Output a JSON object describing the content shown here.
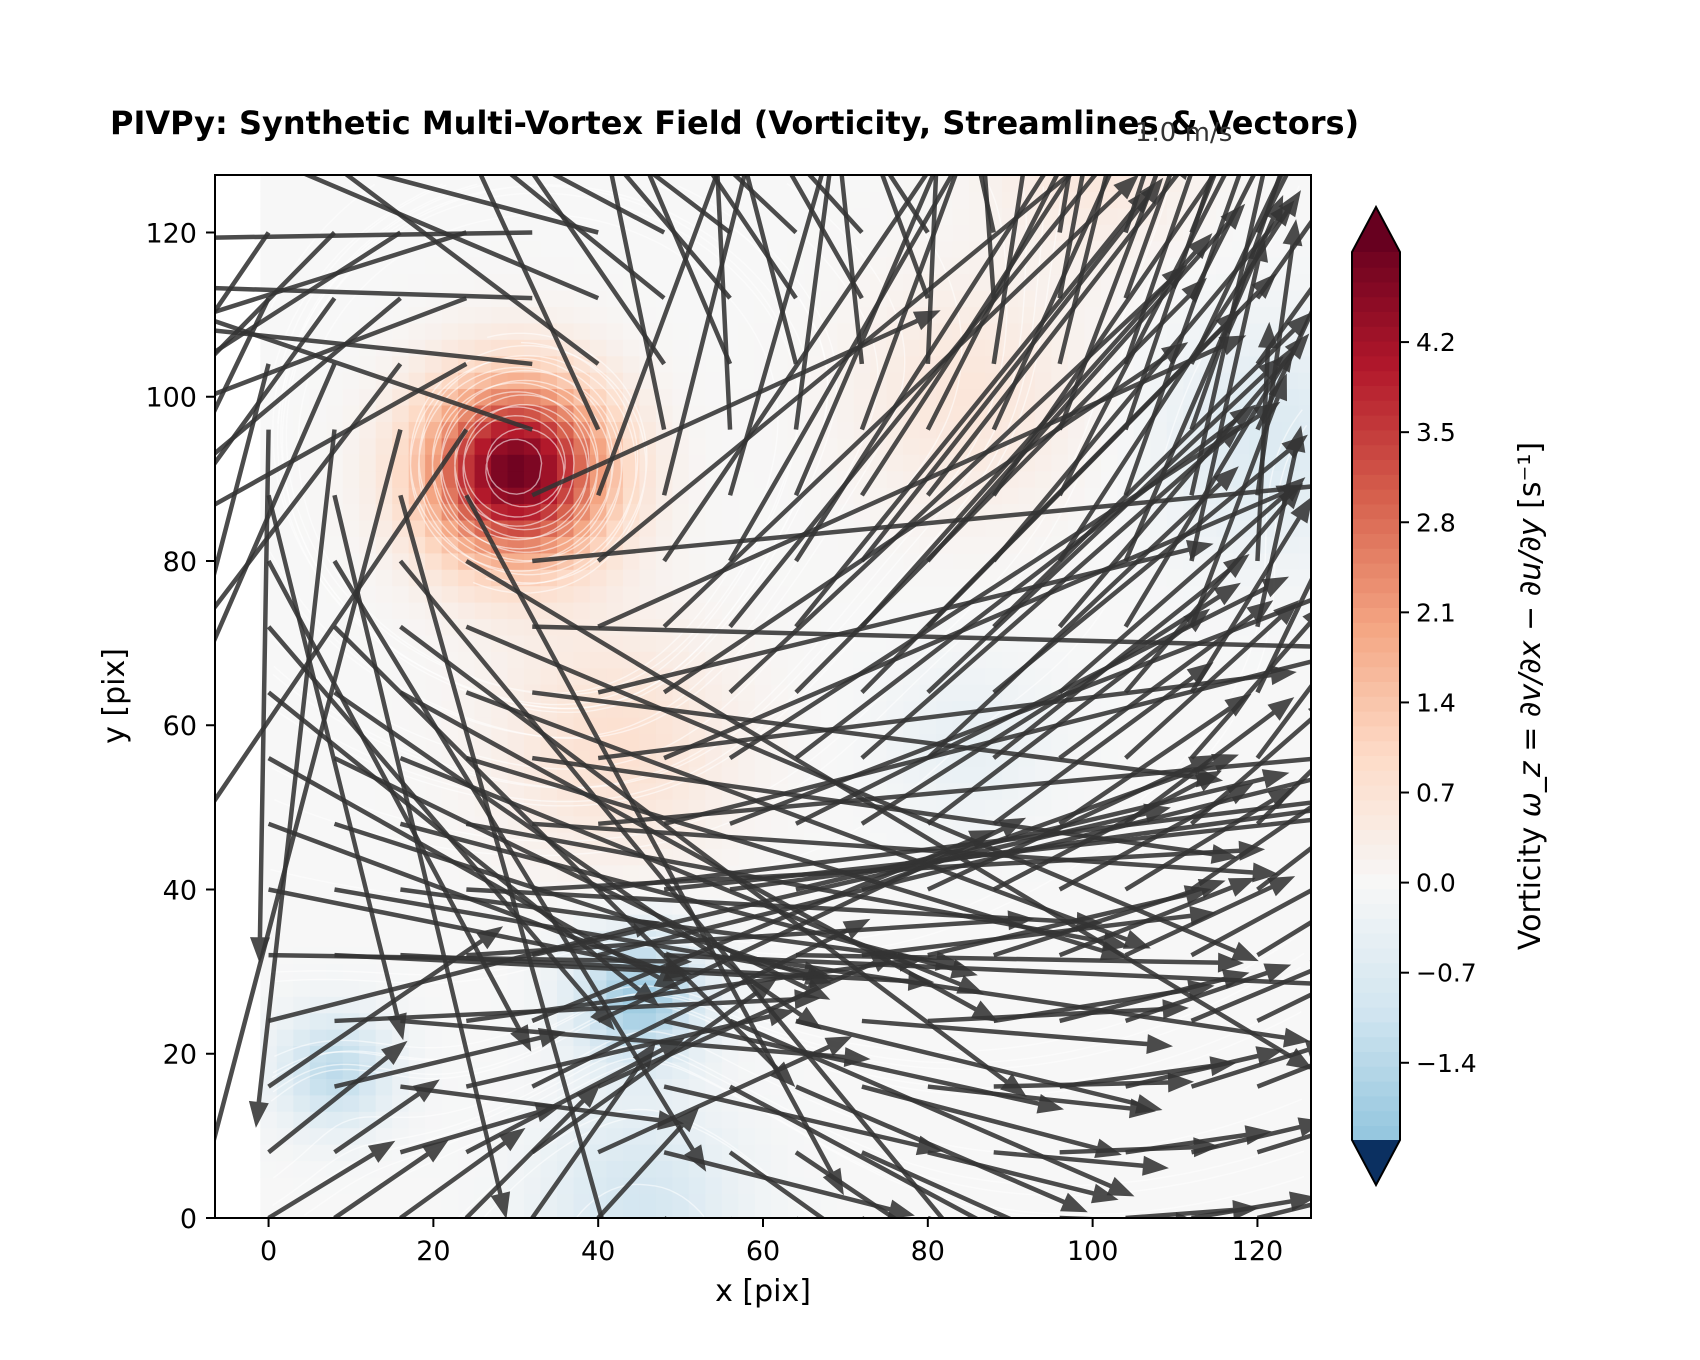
{
  "chart_data": {
    "type": "heatmap",
    "title": "PIVPy: Synthetic Multi-Vortex Field (Vorticity, Streamlines & Vectors)",
    "quiver_key_label": "1.0 m/s",
    "xlabel": "x [pix]",
    "ylabel": "y [pix]",
    "xlim": [
      -6.5,
      126.5
    ],
    "ylim": [
      0,
      127
    ],
    "x_ticks": [
      0,
      20,
      40,
      60,
      80,
      100,
      120
    ],
    "y_ticks": [
      0,
      20,
      40,
      60,
      80,
      100,
      120
    ],
    "grid": false,
    "colormap": "RdBu_r",
    "colorbar": {
      "label_prefix": "Vorticity",
      "label_math": "ω_z = ∂v/∂x − ∂u/∂y",
      "label_unit": "[s⁻¹]",
      "ticks": [
        -1.4,
        -0.7,
        0.0,
        0.7,
        1.4,
        2.1,
        2.8,
        3.5,
        4.2
      ],
      "tick_labels": [
        "−1.4",
        "−0.7",
        "0.0",
        "0.7",
        "1.4",
        "2.1",
        "2.8",
        "3.5",
        "4.2"
      ],
      "range": [
        -2.0,
        4.9
      ],
      "extend": "both",
      "under_color": "#0b3061",
      "over_color": "#67001f"
    },
    "vortices": [
      {
        "x": 30,
        "y": 91,
        "strength": 4.9,
        "core_radius": 11
      },
      {
        "x": 122,
        "y": 95,
        "strength": -0.7,
        "core_radius": 14
      },
      {
        "x": 85,
        "y": 100,
        "strength": 0.6,
        "core_radius": 14
      },
      {
        "x": 45,
        "y": 27,
        "strength": -1.8,
        "core_radius": 8
      },
      {
        "x": 8,
        "y": 18,
        "strength": -1.3,
        "core_radius": 7
      },
      {
        "x": 45,
        "y": 2,
        "strength": -0.9,
        "core_radius": 12
      },
      {
        "x": 42,
        "y": 58,
        "strength": 0.8,
        "core_radius": 14
      },
      {
        "x": 100,
        "y": 130,
        "strength": 0.6,
        "core_radius": 12
      },
      {
        "x": 85,
        "y": 58,
        "strength": -0.4,
        "core_radius": 10
      }
    ],
    "background_flow": {
      "u": 0.55,
      "v": 0.0
    },
    "vector_grid_spacing": 8,
    "vector_color": "#3a3a3a",
    "streamline_color": "#ffffff",
    "colors": {
      "vector": "#333333",
      "streamline": "#ffffff",
      "axes": "#000000"
    }
  }
}
